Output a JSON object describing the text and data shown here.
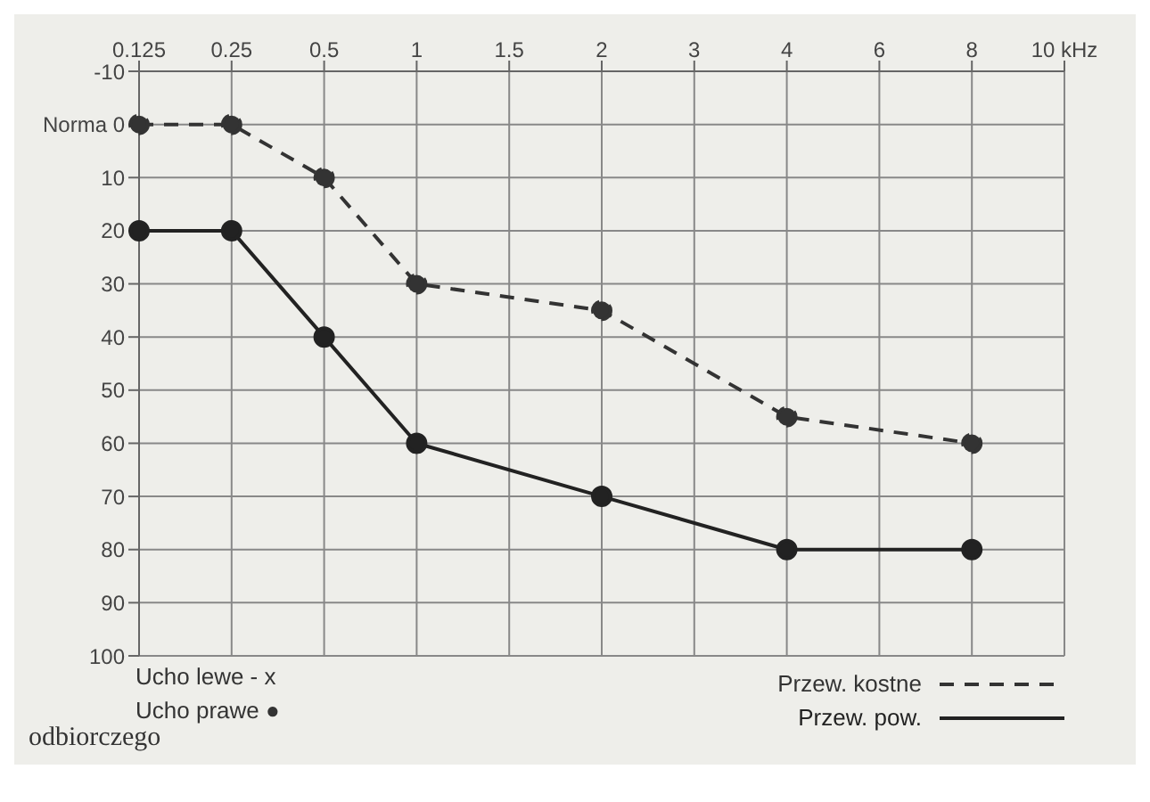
{
  "chart_data": {
    "type": "line",
    "categories": [
      "0.125",
      "0.25",
      "0.5",
      "1",
      "1.5",
      "2",
      "3",
      "4",
      "6",
      "8",
      "10 kHz"
    ],
    "series": [
      {
        "name": "Przew. kostne",
        "color": "#333333",
        "line_style": "dashed",
        "values": [
          0,
          0,
          10,
          30,
          null,
          35,
          null,
          55,
          null,
          60,
          null
        ]
      },
      {
        "name": "Przew. pow.",
        "color": "#222222",
        "line_style": "solid",
        "values": [
          20,
          20,
          40,
          60,
          null,
          70,
          null,
          80,
          null,
          80,
          null
        ]
      }
    ],
    "ylim": [
      100,
      -10
    ],
    "yticks": [
      -10,
      {
        "value": 0,
        "label": "Norma 0"
      },
      10,
      20,
      30,
      40,
      50,
      60,
      70,
      80,
      90,
      100
    ],
    "grid": true,
    "marker": "circle",
    "legend": "bottom right",
    "annotations": [
      "Ucho lewe - x",
      "Ucho prawe ●",
      "odbiorczego"
    ]
  }
}
